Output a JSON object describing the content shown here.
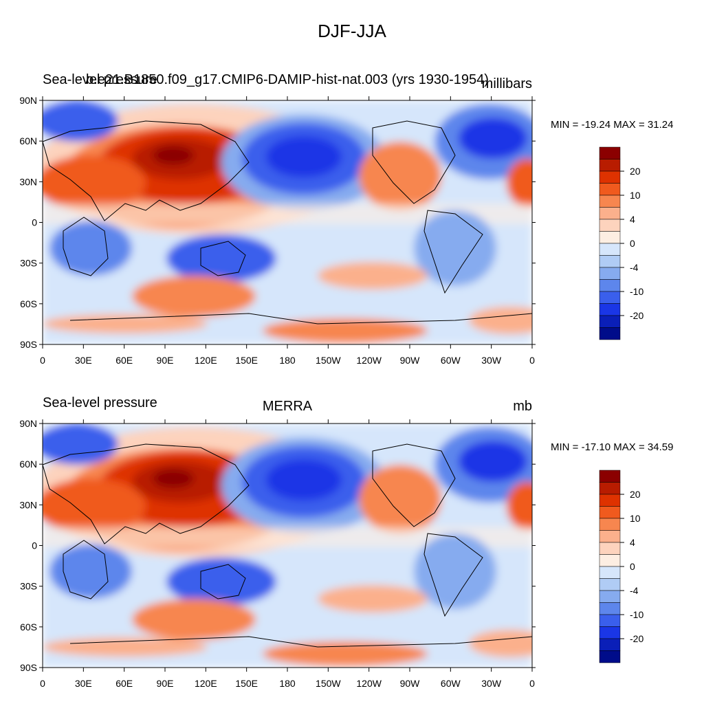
{
  "title": "DJF-JJA",
  "panels": [
    {
      "left_title": "Sea-level pressure",
      "case_title": "b.e21.B1850.f09_g17.CMIP6-DAMIP-hist-nat.003 (yrs 1930-1954)",
      "units": "millibars",
      "minmax": "MIN = -19.24 MAX =  31.24"
    },
    {
      "left_title": "Sea-level pressure",
      "case_title": "MERRA",
      "units": "mb",
      "minmax": "MIN = -17.10 MAX =  34.59"
    }
  ],
  "axes": {
    "lat_labels": [
      "90N",
      "60N",
      "30N",
      "0",
      "30S",
      "60S",
      "90S"
    ],
    "lon_labels": [
      "0",
      "30E",
      "60E",
      "90E",
      "120E",
      "150E",
      "180",
      "150W",
      "120W",
      "90W",
      "60W",
      "30W",
      "0"
    ]
  },
  "colorbar": {
    "labels": [
      "20",
      "10",
      "4",
      "0",
      "-4",
      "-10",
      "-20"
    ],
    "colors": [
      "#8b0000",
      "#b81c00",
      "#de3200",
      "#f05a1e",
      "#f7864f",
      "#fbb08c",
      "#fdd3bd",
      "#fdeee2",
      "#d6e6fb",
      "#b0ccf5",
      "#86abef",
      "#5d86ec",
      "#3a5fec",
      "#1a36e6",
      "#0a1fb8",
      "#000c8a"
    ]
  },
  "colors": {
    "land_outline": "#000000"
  }
}
